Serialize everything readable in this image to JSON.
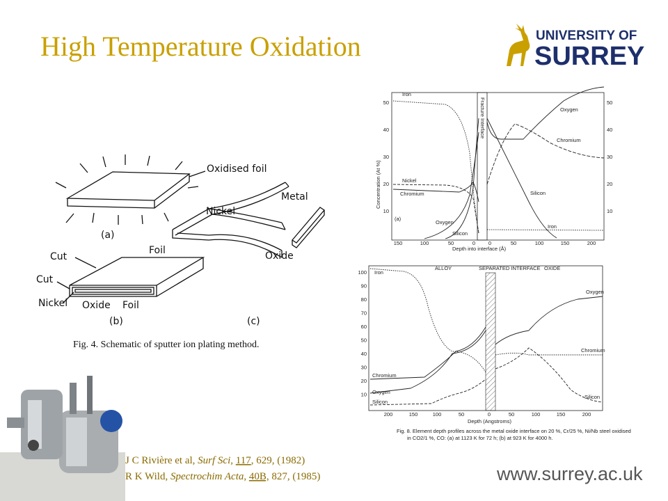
{
  "header": {
    "title": "High Temperature Oxidation",
    "logo_line1": "UNIVERSITY OF",
    "logo_line2": "SURREY"
  },
  "schematic": {
    "oxidised_foil": "Oxidised foil",
    "label_a": "(a)",
    "nickel_c": "Nickel",
    "metal": "Metal",
    "foil_c": "Foil",
    "oxide_c": "Oxide",
    "label_c": "(c)",
    "cut1": "Cut",
    "cut2": "Cut",
    "nickel_b": "Nickel",
    "oxide_b": "Oxide",
    "foil_b": "Foil",
    "label_b": "(b)",
    "caption": "Fig. 4.  Schematic of sputter ion plating method."
  },
  "plot_a": {
    "y_label": "Concentration (At %)",
    "x_label": "Depth into interface (Å)",
    "interface_label": "Fracture Interface",
    "panel": "(a)",
    "y_ticks": [
      "50",
      "40",
      "30",
      "20",
      "10"
    ],
    "y2_ticks": [
      "50",
      "40",
      "30",
      "20",
      "10"
    ],
    "x_ticks": [
      "150",
      "100",
      "50",
      "0",
      "0",
      "50",
      "100",
      "150",
      "200"
    ],
    "curve_labels": {
      "iron_l": "Iron",
      "nickel_l": "Nickel",
      "chromium_l": "Chromium",
      "oxygen_l": "Oxygen",
      "silicon_l": "Silicon",
      "oxygen_r": "Oxygen",
      "chromium_r": "Chromium",
      "silicon_r": "Silicon",
      "iron_r": "Iron"
    }
  },
  "plot_b": {
    "alloy": "ALLOY",
    "interface": "SEPARATED INTERFACE",
    "oxide": "OXIDE",
    "x_label": "Depth (Angstroms)",
    "y_ticks": [
      "100",
      "90",
      "80",
      "70",
      "60",
      "50",
      "40",
      "30",
      "20",
      "10"
    ],
    "x_ticks": [
      "200",
      "150",
      "100",
      "50",
      "0",
      "50",
      "100",
      "150",
      "200"
    ],
    "curve_labels": {
      "iron_l": "Iron",
      "chromium_l": "Chromium",
      "oxygen_l": "Oxygen",
      "silicon_l": "Silicon",
      "oxygen_r": "Oxygen",
      "chromium_r": "Chromium",
      "silicon_r": "Silicon"
    },
    "caption_1": "Fig. 8.  Element depth profiles across the metal oxide interface on 20 %, Cr/25 %, Ni/Nb steel oxidised",
    "caption_2": "in CO2/1 %, CO: (a) at 1123 K for 72 h; (b) at 923 K for 4000 h."
  },
  "references": [
    [
      "J C Rivière et al, ",
      "Surf Sci",
      ", ",
      "117",
      ", 629, (1982)"
    ],
    [
      "R K Wild, ",
      "Spectrochim Acta",
      ", ",
      "40B,",
      " 827, (1985)"
    ]
  ],
  "footer": {
    "url": "www.surrey.ac.uk"
  }
}
